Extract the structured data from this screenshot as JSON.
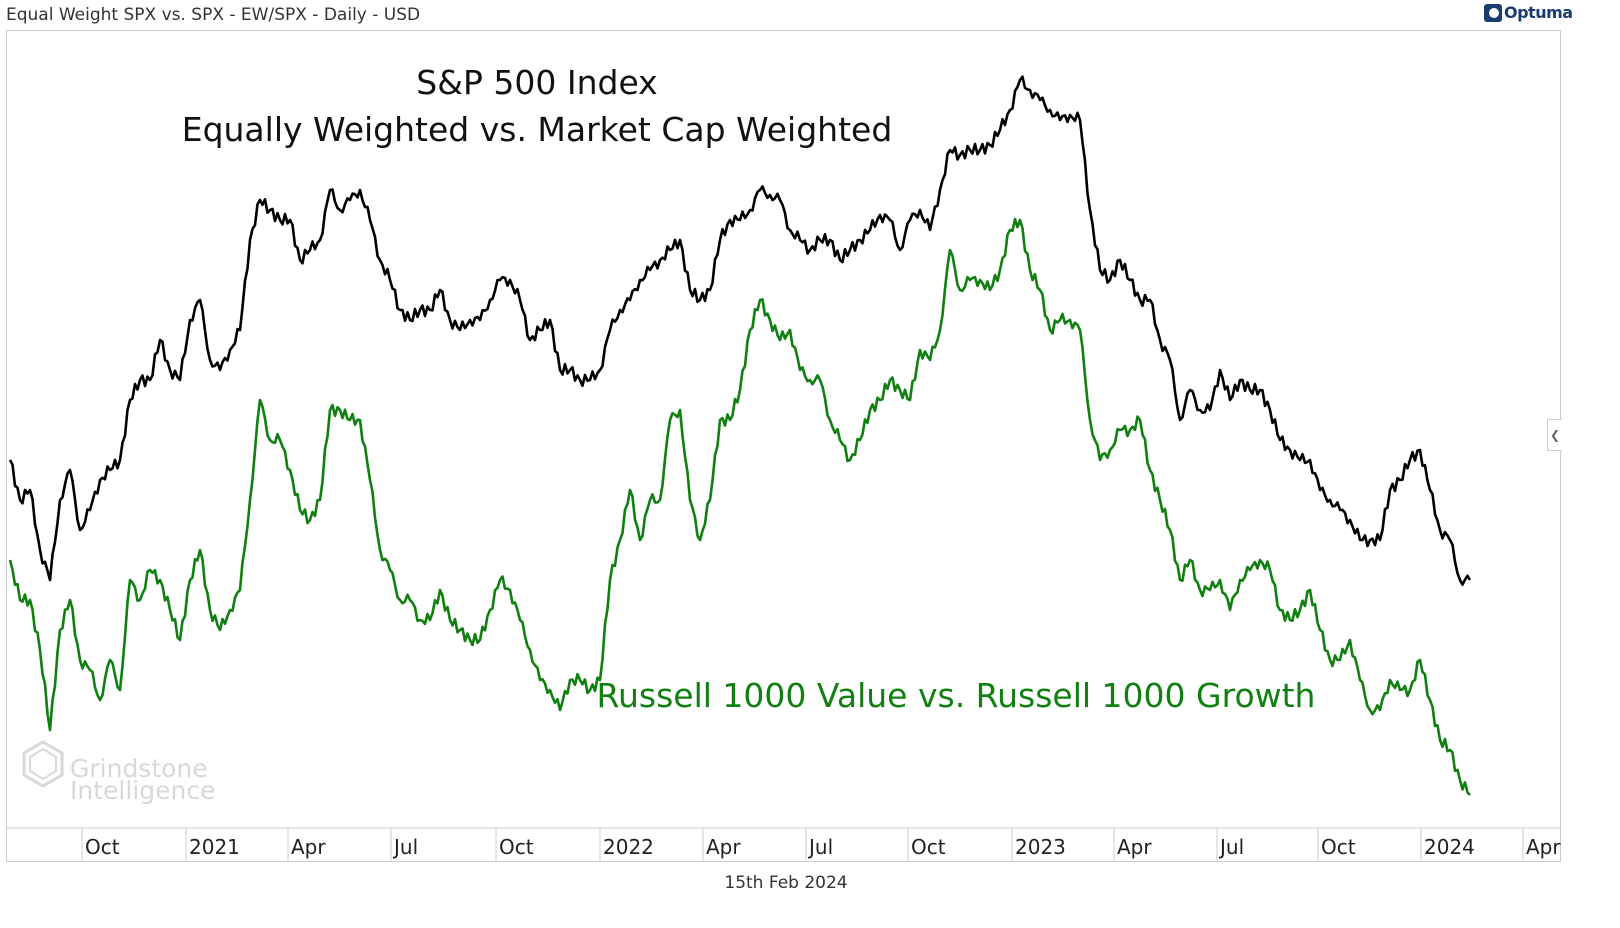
{
  "header": {
    "title": "Equal Weight SPX vs. SPX - EW/SPX - Daily - USD",
    "logo_text": "Optuma"
  },
  "footer": {
    "date": "15th Feb 2024"
  },
  "watermark": {
    "line1": "Grindstone",
    "line2": "Intelligence"
  },
  "colors": {
    "black_series": "#000000",
    "green_series": "#108010",
    "grid": "#cccccc"
  },
  "chart_data": {
    "type": "line",
    "title": "S&P 500 Index",
    "subtitle": "Equally Weighted vs. Market Cap Weighted",
    "annotation": "Russell 1000 Value vs. Russell 1000 Growth",
    "x_range": [
      "2020-08",
      "2024-02-15"
    ],
    "x_ticks": [
      "Oct",
      "2021",
      "Apr",
      "Jul",
      "Oct",
      "2022",
      "Apr",
      "Jul",
      "Oct",
      "2023",
      "Apr",
      "Jul",
      "Oct",
      "2024",
      "Apr"
    ],
    "ylabel": "",
    "y_axis_shown": false,
    "y_units": "relative level (no scale shown)",
    "ylim": [
      0,
      1000
    ],
    "grid": false,
    "series": [
      {
        "name": "S&P 500 Equal Weight / Market Cap Weight",
        "color": "#000000",
        "values": [
          540,
          500,
          510,
          450,
          420,
          500,
          530,
          470,
          490,
          520,
          530,
          540,
          600,
          620,
          620,
          660,
          630,
          620,
          680,
          700,
          640,
          630,
          650,
          670,
          760,
          800,
          790,
          780,
          780,
          740,
          750,
          760,
          810,
          790,
          800,
          810,
          780,
          740,
          720,
          690,
          680,
          690,
          690,
          710,
          680,
          670,
          680,
          680,
          700,
          720,
          720,
          700,
          660,
          670,
          680,
          630,
          630,
          620,
          620,
          630,
          670,
          690,
          700,
          720,
          730,
          740,
          750,
          760,
          710,
          700,
          710,
          760,
          780,
          780,
          790,
          810,
          805,
          800,
          770,
          760,
          750,
          760,
          760,
          740,
          750,
          760,
          770,
          785,
          780,
          750,
          780,
          790,
          770,
          810,
          850,
          845,
          850,
          850,
          855,
          870,
          890,
          920,
          910,
          900,
          890,
          880,
          885,
          880,
          790,
          730,
          720,
          740,
          720,
          700,
          700,
          660,
          640,
          580,
          610,
          590,
          590,
          630,
          600,
          620,
          610,
          610,
          590,
          560,
          550,
          540,
          540,
          510,
          500,
          490,
          480,
          460,
          460,
          460,
          510,
          520,
          540,
          550,
          510,
          470,
          460,
          420,
          420
        ]
      },
      {
        "name": "Russell 1000 Value / Russell 1000 Growth",
        "color": "#108010",
        "values": [
          440,
          400,
          400,
          350,
          270,
          370,
          400,
          340,
          330,
          300,
          340,
          310,
          420,
          400,
          430,
          420,
          390,
          360,
          420,
          450,
          390,
          370,
          390,
          410,
          500,
          600,
          560,
          560,
          530,
          490,
          480,
          500,
          590,
          590,
          580,
          580,
          520,
          450,
          430,
          400,
          400,
          380,
          380,
          410,
          380,
          370,
          360,
          360,
          390,
          420,
          410,
          380,
          350,
          320,
          310,
          290,
          320,
          320,
          310,
          320,
          420,
          460,
          510,
          460,
          500,
          500,
          580,
          590,
          500,
          460,
          500,
          580,
          580,
          610,
          670,
          700,
          680,
          660,
          670,
          630,
          620,
          620,
          580,
          560,
          540,
          560,
          590,
          600,
          620,
          610,
          600,
          650,
          640,
          670,
          750,
          710,
          720,
          720,
          710,
          730,
          770,
          780,
          730,
          710,
          670,
          680,
          680,
          670,
          580,
          540,
          550,
          570,
          570,
          580,
          530,
          500,
          470,
          420,
          440,
          410,
          410,
          420,
          390,
          420,
          430,
          440,
          430,
          390,
          380,
          390,
          410,
          370,
          340,
          340,
          360,
          320,
          290,
          290,
          320,
          310,
          310,
          340,
          300,
          260,
          250,
          220,
          205
        ]
      }
    ]
  }
}
